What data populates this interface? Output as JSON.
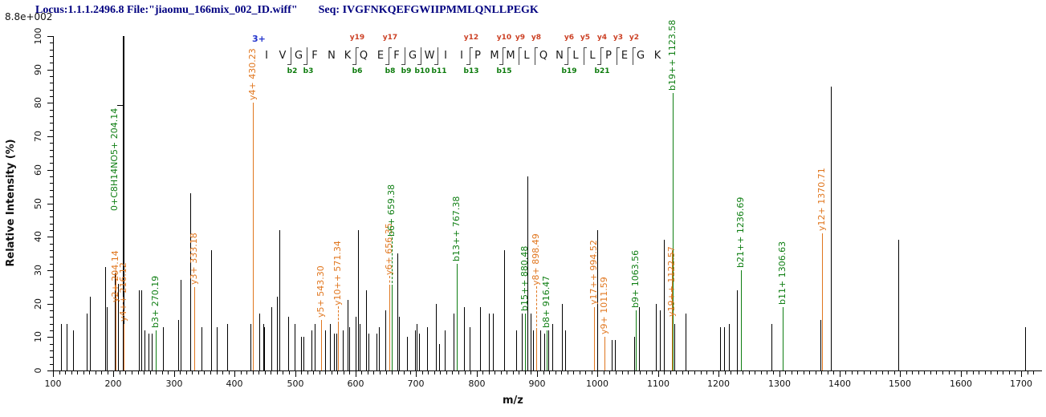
{
  "header": {
    "locus_file": "Locus:1.1.1.2496.8 File:\"jiaomu_166mix_002_ID.wiff\"",
    "seq_label": "Seq: IVGFNKQEFGWIIPMMLQNLLPEGK"
  },
  "chart_data": {
    "type": "bar",
    "subtype": "ms2-spectrum",
    "xlabel": "m/z",
    "ylabel": "Relative  Intensity (%)",
    "scale_label": "8.8e+002",
    "xlim": [
      100,
      1700
    ],
    "x_major_step": 100,
    "x_minor_step": 10,
    "ylim": [
      0,
      100
    ],
    "y_major_step": 10,
    "y_minor_step": 2,
    "grid": false,
    "colors": {
      "peak": "#000000",
      "y_ion": "#e0761e",
      "b_ion": "#0e7e12",
      "header": "#000080",
      "ladder_y_label": "#cc4125",
      "ladder_b_label": "#0b7a0b",
      "charge": "#2233cc"
    },
    "peaks_unlabeled": [
      [
        113,
        14
      ],
      [
        122,
        14
      ],
      [
        133,
        12
      ],
      [
        156,
        17
      ],
      [
        161,
        22
      ],
      [
        186,
        31
      ],
      [
        189,
        19
      ],
      [
        202,
        29
      ],
      [
        207,
        26
      ],
      [
        215,
        100
      ],
      [
        242,
        24
      ],
      [
        246,
        24
      ],
      [
        251,
        12
      ],
      [
        258,
        11
      ],
      [
        263,
        11
      ],
      [
        282,
        13
      ],
      [
        307,
        15
      ],
      [
        311,
        27
      ],
      [
        327,
        53
      ],
      [
        345,
        13
      ],
      [
        361,
        36
      ],
      [
        371,
        13
      ],
      [
        388,
        14
      ],
      [
        426,
        14
      ],
      [
        441,
        17
      ],
      [
        447,
        14
      ],
      [
        449,
        13
      ],
      [
        461,
        19
      ],
      [
        470,
        22
      ],
      [
        474,
        42
      ],
      [
        489,
        16
      ],
      [
        499,
        14
      ],
      [
        510,
        10
      ],
      [
        514,
        10
      ],
      [
        527,
        12
      ],
      [
        532,
        14
      ],
      [
        550,
        12
      ],
      [
        558,
        14
      ],
      [
        565,
        11
      ],
      [
        568,
        11
      ],
      [
        579,
        12
      ],
      [
        587,
        21
      ],
      [
        590,
        13
      ],
      [
        600,
        16
      ],
      [
        604,
        42
      ],
      [
        607,
        14
      ],
      [
        618,
        24
      ],
      [
        622,
        11
      ],
      [
        634,
        11
      ],
      [
        638,
        13
      ],
      [
        649,
        18
      ],
      [
        669,
        35
      ],
      [
        672,
        16
      ],
      [
        685,
        10
      ],
      [
        698,
        12
      ],
      [
        701,
        14
      ],
      [
        705,
        11
      ],
      [
        718,
        13
      ],
      [
        733,
        20
      ],
      [
        738,
        8
      ],
      [
        748,
        12
      ],
      [
        762,
        17
      ],
      [
        779,
        19
      ],
      [
        788,
        13
      ],
      [
        806,
        19
      ],
      [
        821,
        17
      ],
      [
        827,
        17
      ],
      [
        845,
        36
      ],
      [
        865,
        12
      ],
      [
        875,
        17
      ],
      [
        884,
        58
      ],
      [
        889,
        17
      ],
      [
        893,
        12
      ],
      [
        905,
        12
      ],
      [
        912,
        11
      ],
      [
        919,
        12
      ],
      [
        925,
        14
      ],
      [
        941,
        20
      ],
      [
        947,
        12
      ],
      [
        999,
        42
      ],
      [
        1024,
        9
      ],
      [
        1029,
        9
      ],
      [
        1060,
        10
      ],
      [
        1069,
        19
      ],
      [
        1096,
        20
      ],
      [
        1103,
        18
      ],
      [
        1110,
        39
      ],
      [
        1127,
        14
      ],
      [
        1146,
        17
      ],
      [
        1202,
        13
      ],
      [
        1209,
        13
      ],
      [
        1217,
        14
      ],
      [
        1231,
        24
      ],
      [
        1288,
        14
      ],
      [
        1368,
        15
      ],
      [
        1385,
        85
      ],
      [
        1497,
        39
      ],
      [
        1706,
        13
      ]
    ],
    "labeled_peaks": [
      {
        "text": "y2+ 204.14",
        "mz": 204.14,
        "h": 30,
        "type": "y",
        "lift": -41
      },
      {
        "text": "y4++ 216.12",
        "mz": 216.12,
        "h": 14,
        "type": "y"
      },
      {
        "text": "y3+ 333.18",
        "mz": 333.18,
        "h": 25,
        "type": "y"
      },
      {
        "text": "y4+ 430.23",
        "mz": 430.23,
        "h": 80,
        "type": "y"
      },
      {
        "text": "y5+ 543.30",
        "mz": 543.3,
        "h": 15,
        "type": "y"
      },
      {
        "text": "y10++ 571.34",
        "mz": 571.34,
        "h": 14,
        "type": "y",
        "lift": 22,
        "dash": true
      },
      {
        "text": "y6+ 656.35",
        "mz": 656.35,
        "h": 25,
        "type": "y",
        "lift": 14,
        "dash": true
      },
      {
        "text": "y8+ 898.49",
        "mz": 898.49,
        "h": 12,
        "type": "y",
        "lift": 55,
        "dash": true
      },
      {
        "text": "y17++ 994.52",
        "mz": 994.52,
        "h": 19,
        "type": "y"
      },
      {
        "text": "y9+ 1011.59",
        "mz": 1011.59,
        "h": 10,
        "type": "y"
      },
      {
        "text": "y19++ 1122.57",
        "mz": 1122.57,
        "h": 36,
        "type": "y",
        "lift": -84
      },
      {
        "text": "y12+ 1370.71",
        "mz": 1370.71,
        "h": 41,
        "type": "y"
      },
      {
        "text": "b3+ 270.19",
        "mz": 270.19,
        "h": 12,
        "type": "b"
      },
      {
        "text": "b6+ 659.38",
        "mz": 659.38,
        "h": 25,
        "type": "b",
        "lift": 62,
        "dash": true
      },
      {
        "text": "b13++ 767.38",
        "mz": 767.38,
        "h": 32,
        "type": "b"
      },
      {
        "text": "b15++ 880.48",
        "mz": 880.48,
        "h": 17,
        "type": "b"
      },
      {
        "text": "b8+ 916.47",
        "mz": 916.47,
        "h": 12,
        "type": "b"
      },
      {
        "text": "b9+ 1063.56",
        "mz": 1063.56,
        "h": 18,
        "type": "b"
      },
      {
        "text": "b19++ 1123.58",
        "mz": 1123.58,
        "h": 83,
        "type": "b"
      },
      {
        "text": "b21++ 1236.69",
        "mz": 1236.69,
        "h": 30,
        "type": "b"
      },
      {
        "text": "b11+ 1306.63",
        "mz": 1306.63,
        "h": 19,
        "type": "b"
      }
    ],
    "extra_labels": [
      {
        "text": "0+C8H14NO5+ 204.14",
        "type": "b",
        "x": 143,
        "bottom_y": 263,
        "connector": {
          "x1": 146,
          "x2": 154,
          "y": 131
        }
      }
    ]
  },
  "ladder": {
    "charge": "3+",
    "residues": [
      "I",
      "V",
      "G",
      "F",
      "N",
      "K",
      "Q",
      "E",
      "F",
      "G",
      "W",
      "I",
      "I",
      "P",
      "M",
      "M",
      "L",
      "Q",
      "N",
      "L",
      "L",
      "P",
      "E",
      "G",
      "K"
    ],
    "y_ions": [
      {
        "name": "y19",
        "after": 6
      },
      {
        "name": "y17",
        "after": 8
      },
      {
        "name": "y12",
        "after": 13
      },
      {
        "name": "y10",
        "after": 15
      },
      {
        "name": "y9",
        "after": 16
      },
      {
        "name": "y8",
        "after": 17
      },
      {
        "name": "y6",
        "after": 19
      },
      {
        "name": "y5",
        "after": 20
      },
      {
        "name": "y4",
        "after": 21
      },
      {
        "name": "y3",
        "after": 22
      },
      {
        "name": "y2",
        "after": 23
      }
    ],
    "b_ions": [
      {
        "name": "b2",
        "after": 2
      },
      {
        "name": "b3",
        "after": 3
      },
      {
        "name": "b6",
        "after": 6
      },
      {
        "name": "b8",
        "after": 8
      },
      {
        "name": "b9",
        "after": 9
      },
      {
        "name": "b10",
        "after": 10
      },
      {
        "name": "b11",
        "after": 11
      },
      {
        "name": "b13",
        "after": 13
      },
      {
        "name": "b15",
        "after": 15
      },
      {
        "name": "b19",
        "after": 19
      },
      {
        "name": "b21",
        "after": 21
      }
    ]
  }
}
